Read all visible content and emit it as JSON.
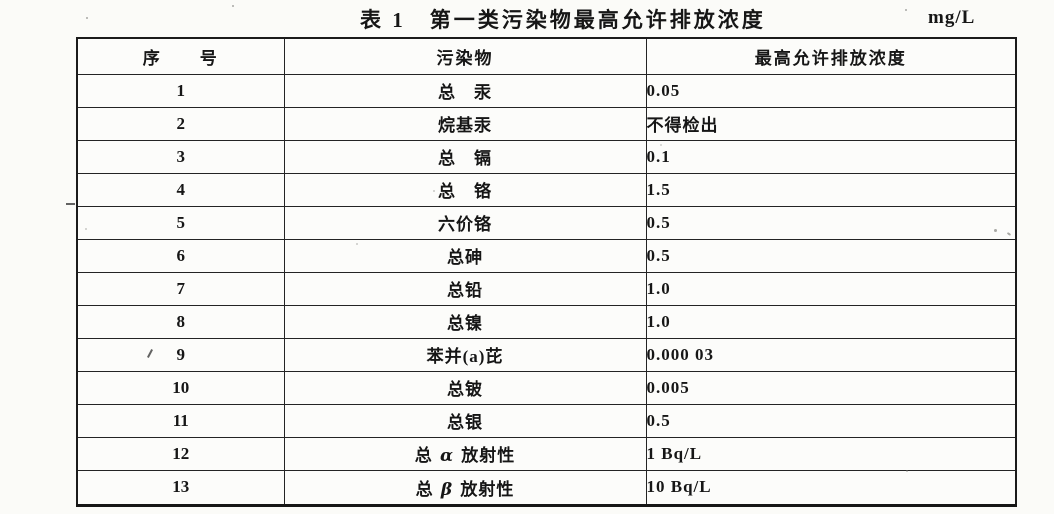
{
  "page": {
    "title": "表 1　第一类污染物最高允许排放浓度",
    "unit": "mg/L"
  },
  "table": {
    "columns": [
      "序　　号",
      "污染物",
      "最高允许排放浓度"
    ],
    "rows": [
      {
        "no": "1",
        "pollutant": "总　汞",
        "value": "0.05"
      },
      {
        "no": "2",
        "pollutant": "烷基汞",
        "value": "不得检出"
      },
      {
        "no": "3",
        "pollutant": "总　镉",
        "value": "0.1"
      },
      {
        "no": "4",
        "pollutant": "总　铬",
        "value": "1.5"
      },
      {
        "no": "5",
        "pollutant": "六价铬",
        "value": "0.5"
      },
      {
        "no": "6",
        "pollutant": "总砷",
        "value": "0.5"
      },
      {
        "no": "7",
        "pollutant": "总铅",
        "value": "1.0"
      },
      {
        "no": "8",
        "pollutant": "总镍",
        "value": "1.0"
      },
      {
        "no": "9",
        "pollutant": "苯并(a)芘",
        "value": "0.000 03"
      },
      {
        "no": "10",
        "pollutant": "总铍",
        "value": "0.005"
      },
      {
        "no": "11",
        "pollutant": "总银",
        "value": "0.5"
      },
      {
        "no": "12",
        "pollutant": "总 α 放射性",
        "value": "1 Bq/L"
      },
      {
        "no": "13",
        "pollutant": "总 β 放射性",
        "value": "10 Bq/L"
      }
    ]
  }
}
